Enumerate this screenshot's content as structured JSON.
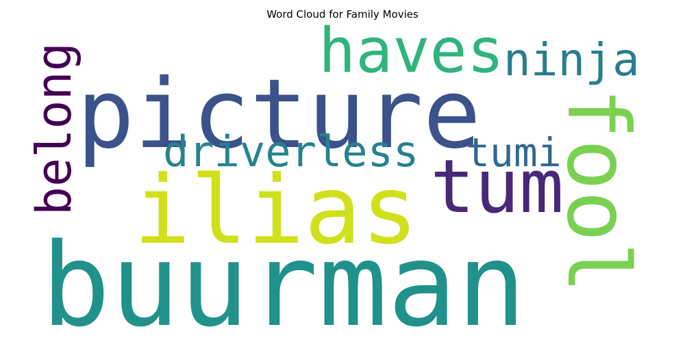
{
  "chart_data": {
    "type": "wordcloud",
    "title": "Word Cloud for Family Movies",
    "words": [
      {
        "text": "buurman",
        "color": "#21918c"
      },
      {
        "text": "picture",
        "color": "#3b528b"
      },
      {
        "text": "ilias",
        "color": "#d0e11c"
      },
      {
        "text": "fool",
        "color": "#7ad151"
      },
      {
        "text": "tum",
        "color": "#482878"
      },
      {
        "text": "haves",
        "color": "#2fb47c"
      },
      {
        "text": "belong",
        "color": "#440154"
      },
      {
        "text": "ninja",
        "color": "#287d8e"
      },
      {
        "text": "driverless",
        "color": "#26828e"
      },
      {
        "text": "tumi",
        "color": "#31688e"
      }
    ]
  }
}
